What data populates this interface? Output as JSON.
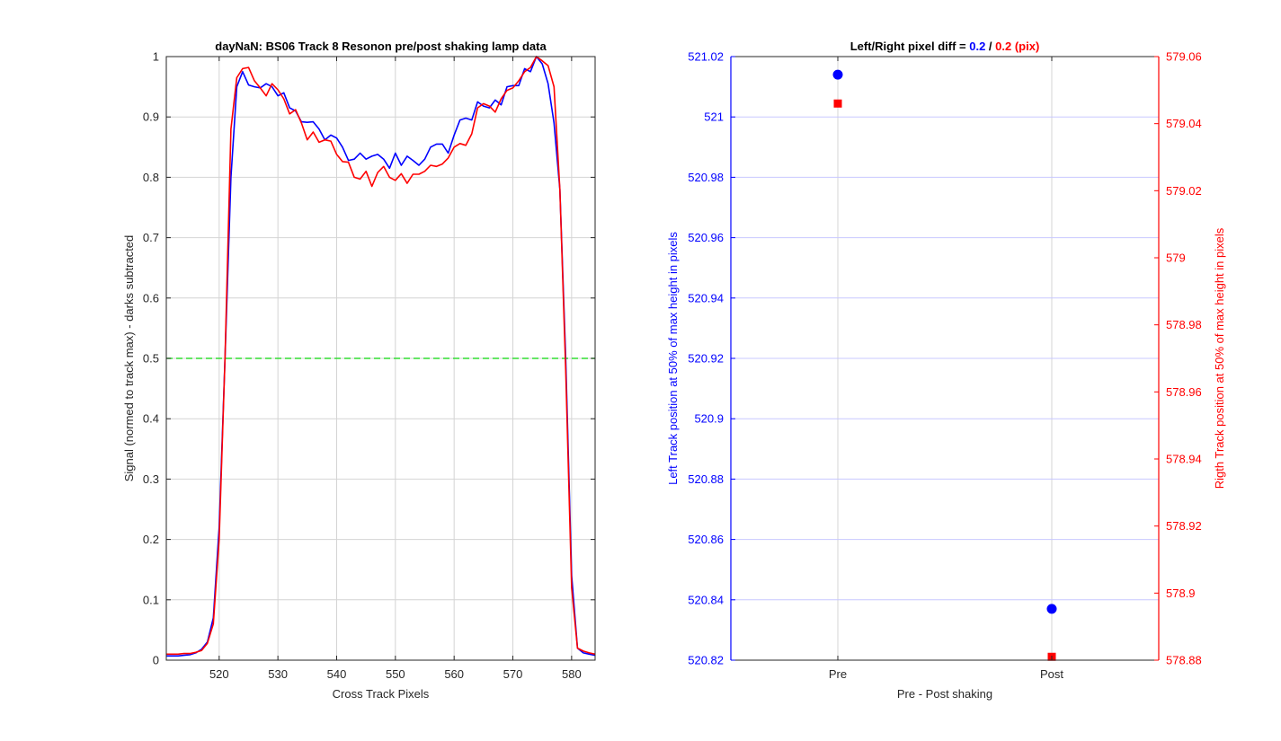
{
  "colors": {
    "pre": "#0000ff",
    "post": "#ff0000",
    "threshold": "#33dd33",
    "grid": "#d4d4d4",
    "right_grid": "#c8c8ff",
    "axis": "#262626"
  },
  "chart_data": [
    {
      "type": "line",
      "title": "dayNaN: BS06  Track 8 Resonon pre/post shaking lamp data",
      "xlabel": "Cross Track Pixels",
      "ylabel": "Signal (normed to track max) - darks subtracted",
      "xlim": [
        511,
        584
      ],
      "ylim": [
        0,
        1
      ],
      "xticks": [
        "520",
        "530",
        "540",
        "550",
        "560",
        "570",
        "580"
      ],
      "yticks": [
        "0",
        "0.1",
        "0.2",
        "0.3",
        "0.4",
        "0.5",
        "0.6",
        "0.7",
        "0.8",
        "0.9",
        "1"
      ],
      "grid": true,
      "x": [
        511,
        512,
        513,
        514,
        515,
        516,
        517,
        518,
        519,
        520,
        521,
        522,
        523,
        524,
        525,
        526,
        527,
        528,
        529,
        530,
        531,
        532,
        533,
        534,
        535,
        536,
        537,
        538,
        539,
        540,
        541,
        542,
        543,
        544,
        545,
        546,
        547,
        548,
        549,
        550,
        551,
        552,
        553,
        554,
        555,
        556,
        557,
        558,
        559,
        560,
        561,
        562,
        563,
        564,
        565,
        566,
        567,
        568,
        569,
        570,
        571,
        572,
        573,
        574,
        575,
        576,
        577,
        578,
        579,
        580,
        581,
        582,
        583,
        584
      ],
      "series": [
        {
          "name": "",
          "color": "#0000ff",
          "values": [
            0.007,
            0.007,
            0.007,
            0.008,
            0.009,
            0.012,
            0.018,
            0.03,
            0.07,
            0.22,
            0.5,
            0.8,
            0.95,
            0.975,
            0.953,
            0.95,
            0.948,
            0.955,
            0.95,
            0.935,
            0.94,
            0.915,
            0.91,
            0.892,
            0.891,
            0.892,
            0.88,
            0.862,
            0.87,
            0.865,
            0.85,
            0.828,
            0.83,
            0.84,
            0.83,
            0.835,
            0.838,
            0.83,
            0.815,
            0.84,
            0.82,
            0.835,
            0.828,
            0.82,
            0.83,
            0.85,
            0.855,
            0.855,
            0.84,
            0.87,
            0.895,
            0.898,
            0.895,
            0.925,
            0.918,
            0.915,
            0.928,
            0.92,
            0.95,
            0.952,
            0.952,
            0.98,
            0.975,
            1.0,
            0.988,
            0.955,
            0.89,
            0.78,
            0.5,
            0.14,
            0.02,
            0.012,
            0.01,
            0.008
          ]
        },
        {
          "name": "",
          "color": "#ff0000",
          "values": [
            0.01,
            0.01,
            0.01,
            0.011,
            0.011,
            0.013,
            0.016,
            0.028,
            0.06,
            0.2,
            0.5,
            0.88,
            0.965,
            0.98,
            0.982,
            0.96,
            0.948,
            0.935,
            0.955,
            0.945,
            0.93,
            0.905,
            0.912,
            0.89,
            0.862,
            0.875,
            0.858,
            0.862,
            0.86,
            0.838,
            0.826,
            0.825,
            0.8,
            0.797,
            0.81,
            0.785,
            0.808,
            0.818,
            0.8,
            0.795,
            0.806,
            0.79,
            0.805,
            0.805,
            0.81,
            0.82,
            0.818,
            0.822,
            0.832,
            0.85,
            0.856,
            0.853,
            0.872,
            0.915,
            0.922,
            0.918,
            0.908,
            0.93,
            0.944,
            0.948,
            0.96,
            0.975,
            0.982,
            1.0,
            0.993,
            0.985,
            0.95,
            0.78,
            0.48,
            0.12,
            0.02,
            0.015,
            0.012,
            0.01
          ]
        }
      ],
      "threshold": 0.5
    },
    {
      "type": "scatter",
      "title_parts": [
        "Left/Right pixel diff = ",
        "0.2",
        " / ",
        "0.2 (pix)"
      ],
      "xlabel": "Pre - Post shaking",
      "ylabel_left": "Left Track position at 50% of max height in pixels",
      "ylabel_right": "Rigth Track position at 50% of max height in pixels",
      "categories": [
        "Pre",
        "Post"
      ],
      "left": {
        "ylim": [
          520.82,
          521.02
        ],
        "yticks": [
          "520.82",
          "520.84",
          "520.86",
          "520.88",
          "520.9",
          "520.92",
          "520.94",
          "520.96",
          "520.98",
          "521",
          "521.02"
        ],
        "values": [
          521.014,
          520.837
        ],
        "color": "#0000ff",
        "marker": "circle"
      },
      "right": {
        "ylim": [
          578.88,
          579.06
        ],
        "yticks": [
          "578.88",
          "578.9",
          "578.92",
          "578.94",
          "578.96",
          "578.98",
          "579",
          "579.02",
          "579.04",
          "579.06"
        ],
        "values": [
          579.046,
          578.881
        ],
        "color": "#ff0000",
        "marker": "square"
      },
      "grid": true
    }
  ]
}
